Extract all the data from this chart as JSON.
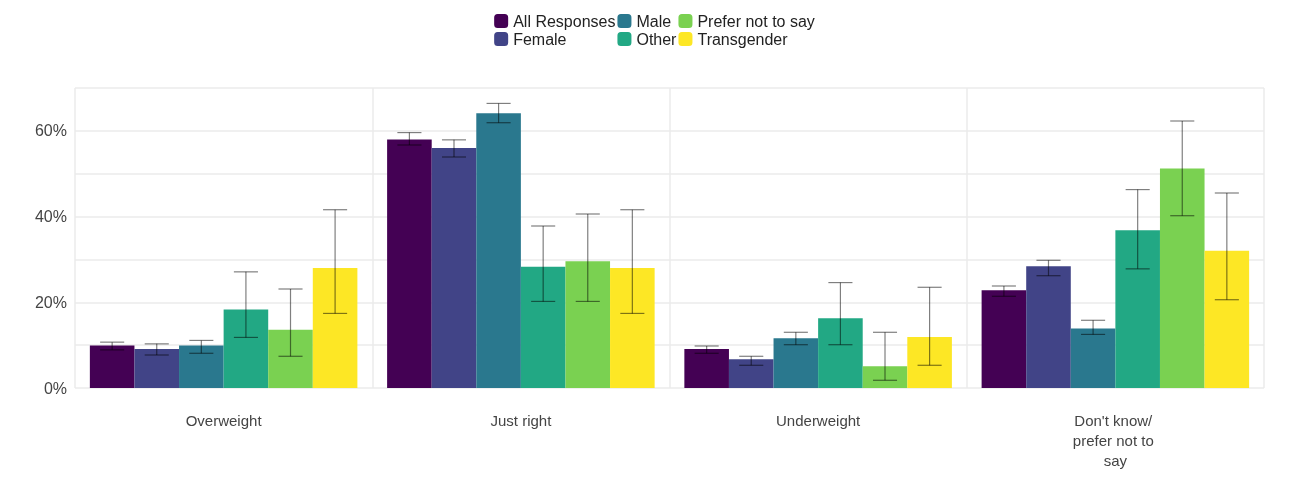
{
  "chart_data": {
    "type": "bar",
    "categories": [
      "Overweight",
      "Just right",
      "Underweight",
      "Don't know/ prefer not to say"
    ],
    "series": [
      {
        "name": "All Responses",
        "color": "#440154",
        "values": [
          9.9,
          58.0,
          9.1,
          22.8
        ],
        "errors": [
          [
            8.9,
            10.7
          ],
          [
            56.7,
            59.6
          ],
          [
            8.1,
            9.8
          ],
          [
            21.4,
            23.8
          ]
        ]
      },
      {
        "name": "Female",
        "color": "#414487",
        "values": [
          9.1,
          56.0,
          6.7,
          28.4
        ],
        "errors": [
          [
            7.7,
            10.3
          ],
          [
            53.9,
            57.9
          ],
          [
            5.3,
            7.4
          ],
          [
            26.2,
            29.8
          ]
        ]
      },
      {
        "name": "Male",
        "color": "#2a788e",
        "values": [
          9.9,
          64.1,
          11.6,
          13.9
        ],
        "errors": [
          [
            8.1,
            11.1
          ],
          [
            61.9,
            66.4
          ],
          [
            10.1,
            13.0
          ],
          [
            12.5,
            15.8
          ]
        ]
      },
      {
        "name": "Other",
        "color": "#22a884",
        "values": [
          18.3,
          28.3,
          16.3,
          36.8
        ],
        "errors": [
          [
            11.8,
            27.1
          ],
          [
            20.2,
            37.8
          ],
          [
            10.1,
            24.6
          ],
          [
            27.8,
            46.3
          ]
        ]
      },
      {
        "name": "Prefer not to say",
        "color": "#7ad151",
        "values": [
          13.6,
          29.6,
          5.1,
          51.2
        ],
        "errors": [
          [
            7.4,
            23.1
          ],
          [
            20.2,
            40.6
          ],
          [
            1.8,
            13.0
          ],
          [
            40.2,
            62.3
          ]
        ]
      },
      {
        "name": "Transgender",
        "color": "#fde725",
        "values": [
          28.0,
          28.0,
          11.9,
          32.0
        ],
        "errors": [
          [
            17.4,
            41.6
          ],
          [
            17.4,
            41.6
          ],
          [
            5.3,
            23.5
          ],
          [
            20.6,
            45.5
          ]
        ]
      }
    ],
    "ylim": [
      0,
      70
    ],
    "yticks": [
      {
        "value": 0,
        "label": "0%"
      },
      {
        "value": 10,
        "label": null
      },
      {
        "value": 20,
        "label": "20%"
      },
      {
        "value": 30,
        "label": null
      },
      {
        "value": 40,
        "label": "40%"
      },
      {
        "value": 50,
        "label": null
      },
      {
        "value": 60,
        "label": "60%"
      },
      {
        "value": 70,
        "label": null
      }
    ],
    "grid": true,
    "legend": "top"
  }
}
